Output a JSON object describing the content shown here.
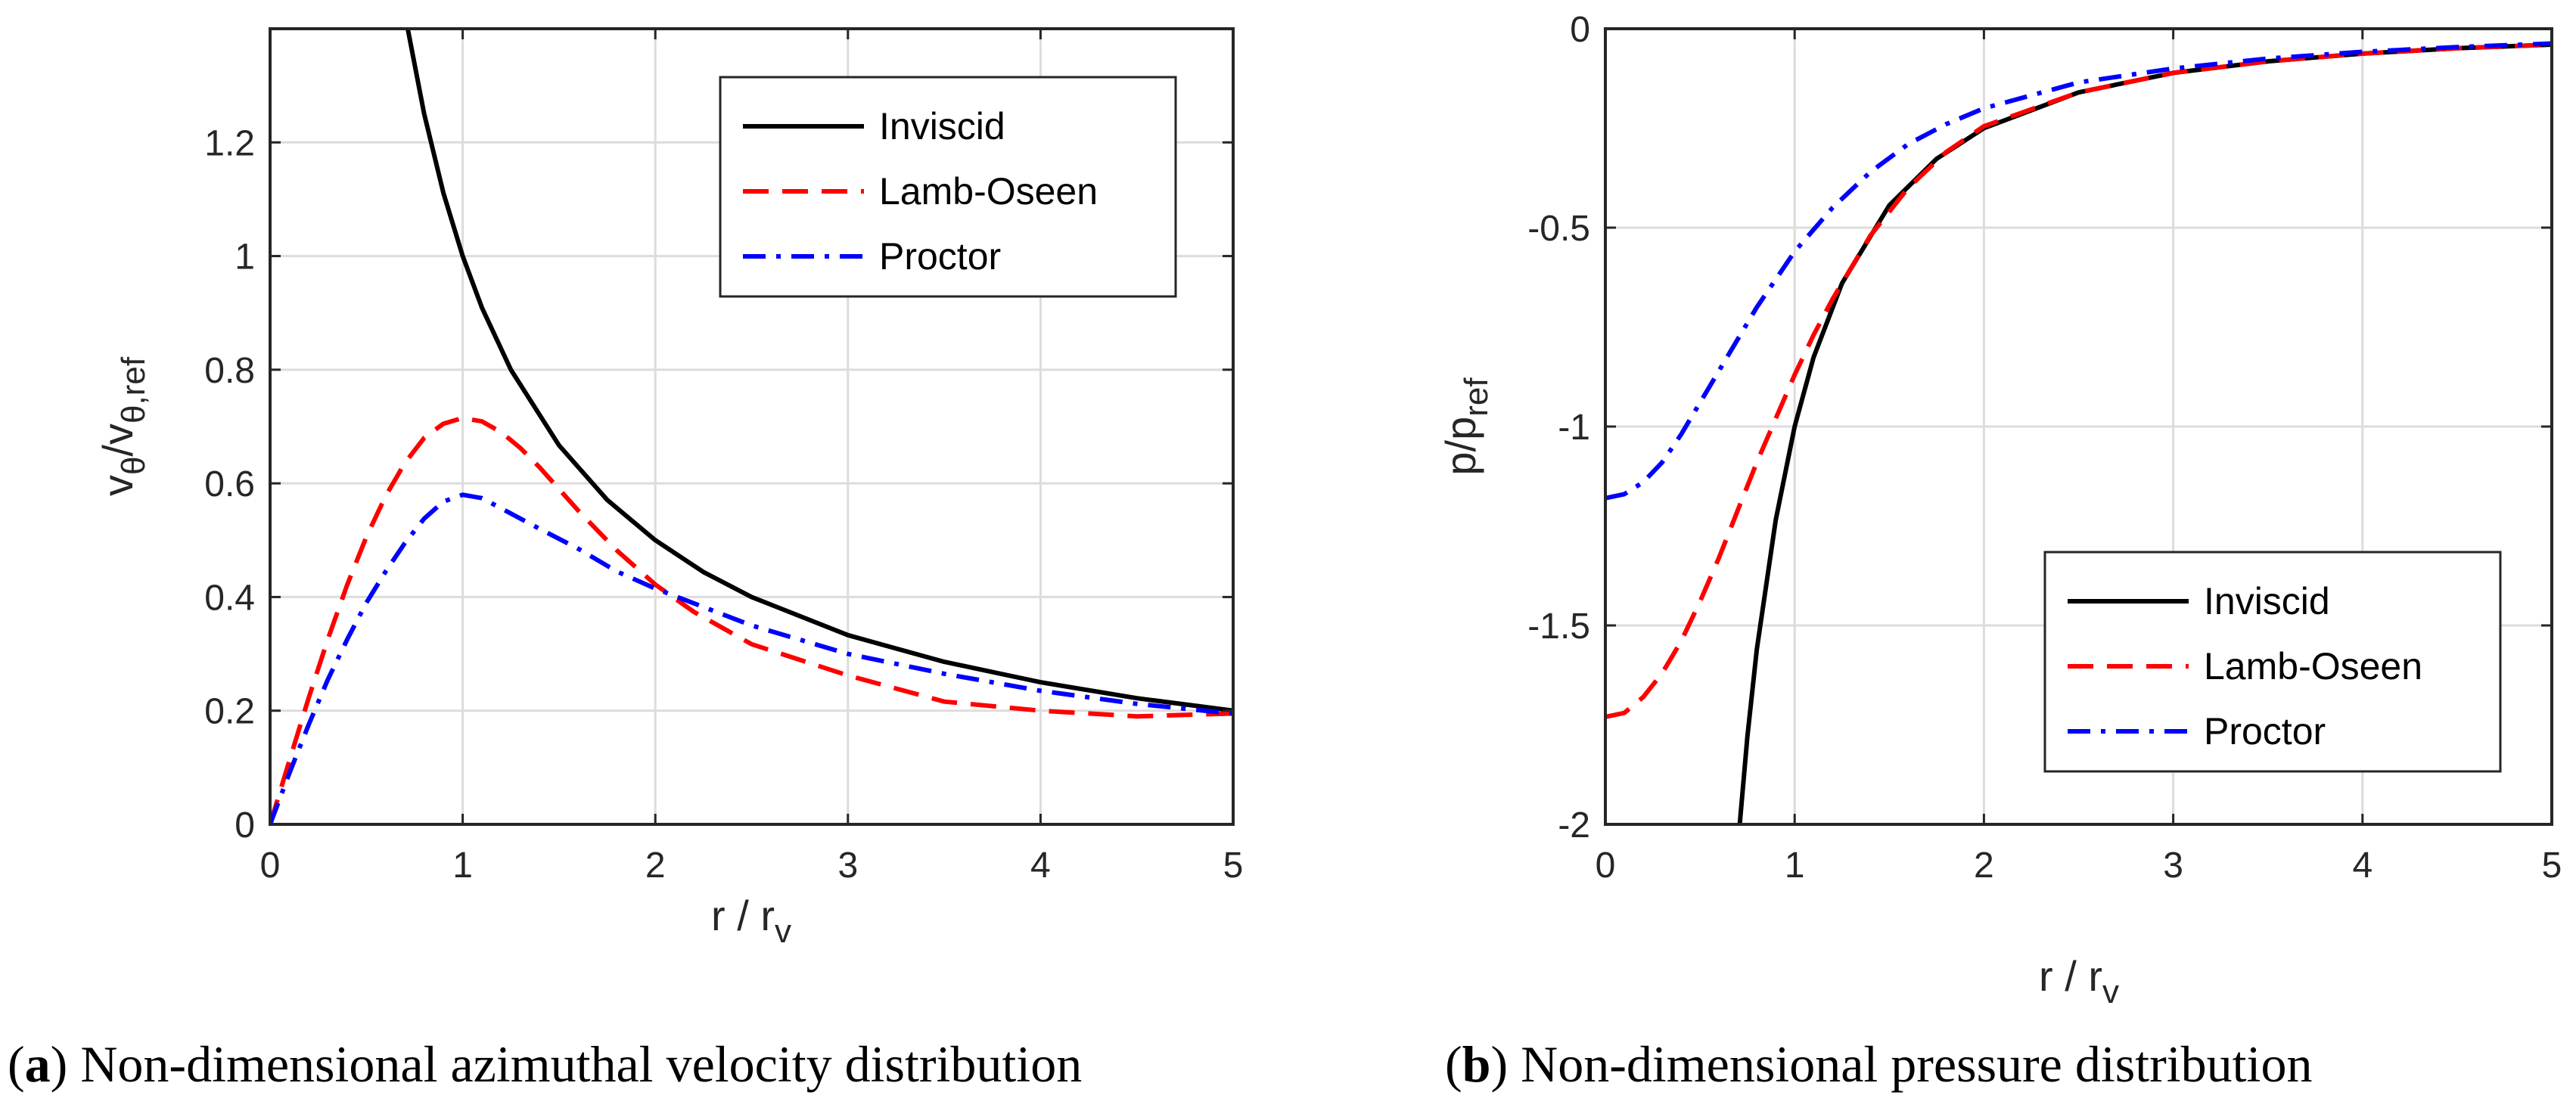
{
  "chart_data": [
    {
      "id": "a",
      "type": "line",
      "title": "",
      "xlabel": "r / r",
      "xlabel_sub": "v",
      "ylabel_parts": [
        "v",
        "θ",
        "/v",
        "θ,ref"
      ],
      "xlim": [
        0,
        5
      ],
      "ylim": [
        0,
        1.4
      ],
      "xticks": [
        0,
        1,
        2,
        3,
        4,
        5
      ],
      "yticks": [
        0,
        0.2,
        0.4,
        0.6,
        0.8,
        1,
        1.2
      ],
      "xtick_labels": [
        "0",
        "1",
        "2",
        "3",
        "4",
        "5"
      ],
      "ytick_labels": [
        "0",
        "0.2",
        "0.4",
        "0.6",
        "0.8",
        "1",
        "1.2"
      ],
      "grid": true,
      "legend_placement": "top-right",
      "caption_label": "a",
      "caption_text": "Non-dimensional azimuthal velocity distribution",
      "series": [
        {
          "name": "Inviscid",
          "color": "#000000",
          "style": "solid",
          "x": [
            0.71,
            0.8,
            0.9,
            1,
            1.1,
            1.25,
            1.5,
            1.75,
            2,
            2.25,
            2.5,
            3,
            3.5,
            4,
            4.5,
            5
          ],
          "y": [
            1.408,
            1.25,
            1.111,
            1,
            0.909,
            0.8,
            0.667,
            0.571,
            0.5,
            0.444,
            0.4,
            0.333,
            0.286,
            0.25,
            0.222,
            0.2
          ]
        },
        {
          "name": "Lamb-Oseen",
          "color": "#ff0000",
          "style": "dashed",
          "x": [
            0,
            0.1,
            0.2,
            0.3,
            0.4,
            0.5,
            0.6,
            0.7,
            0.8,
            0.9,
            1,
            1.1,
            1.2,
            1.3,
            1.4,
            1.5,
            1.6,
            1.8,
            2,
            2.2,
            2.5,
            3,
            3.5,
            4,
            4.5,
            5
          ],
          "y": [
            0,
            0.112,
            0.222,
            0.326,
            0.421,
            0.506,
            0.578,
            0.636,
            0.68,
            0.705,
            0.715,
            0.709,
            0.69,
            0.662,
            0.628,
            0.59,
            0.552,
            0.482,
            0.422,
            0.374,
            0.317,
            0.262,
            0.216,
            0.2,
            0.19,
            0.195
          ]
        },
        {
          "name": "Proctor",
          "color": "#0000ff",
          "style": "dashdot",
          "x": [
            0,
            0.1,
            0.2,
            0.3,
            0.4,
            0.5,
            0.6,
            0.7,
            0.8,
            0.9,
            1,
            1.1,
            1.2,
            1.4,
            1.6,
            1.8,
            2,
            2.5,
            3,
            3.5,
            4,
            4.5,
            5
          ],
          "y": [
            0,
            0.09,
            0.175,
            0.255,
            0.325,
            0.39,
            0.445,
            0.495,
            0.538,
            0.568,
            0.58,
            0.574,
            0.556,
            0.52,
            0.485,
            0.445,
            0.415,
            0.35,
            0.3,
            0.265,
            0.235,
            0.212,
            0.195
          ]
        }
      ]
    },
    {
      "id": "b",
      "type": "line",
      "title": "",
      "xlabel": "r / r",
      "xlabel_sub": "v",
      "ylabel_parts": [
        "p/p",
        "ref"
      ],
      "xlim": [
        0,
        5
      ],
      "ylim": [
        -2,
        0
      ],
      "xticks": [
        0,
        1,
        2,
        3,
        4,
        5
      ],
      "yticks": [
        -2,
        -1.5,
        -1,
        -0.5,
        0
      ],
      "xtick_labels": [
        "0",
        "1",
        "2",
        "3",
        "4",
        "5"
      ],
      "ytick_labels": [
        "-2",
        "-1.5",
        "-1",
        "-0.5",
        "0"
      ],
      "grid": true,
      "legend_placement": "bottom-right",
      "caption_label": "b",
      "caption_text": "Non-dimensional pressure distribution",
      "series": [
        {
          "name": "Inviscid",
          "color": "#000000",
          "style": "solid",
          "x": [
            0.71,
            0.75,
            0.8,
            0.9,
            1,
            1.1,
            1.25,
            1.5,
            1.75,
            2,
            2.5,
            3,
            3.5,
            4,
            4.5,
            5
          ],
          "y": [
            -2,
            -1.78,
            -1.56,
            -1.235,
            -1,
            -0.826,
            -0.64,
            -0.444,
            -0.327,
            -0.25,
            -0.16,
            -0.111,
            -0.082,
            -0.0625,
            -0.049,
            -0.04
          ]
        },
        {
          "name": "Lamb-Oseen",
          "color": "#ff0000",
          "style": "dashed",
          "x": [
            0,
            0.1,
            0.2,
            0.3,
            0.4,
            0.5,
            0.6,
            0.7,
            0.8,
            0.9,
            1,
            1.1,
            1.2,
            1.4,
            1.6,
            1.8,
            2,
            2.5,
            3,
            3.5,
            4,
            4.5,
            5
          ],
          "y": [
            -1.73,
            -1.72,
            -1.68,
            -1.62,
            -1.54,
            -1.44,
            -1.33,
            -1.21,
            -1.09,
            -0.98,
            -0.87,
            -0.77,
            -0.68,
            -0.52,
            -0.4,
            -0.31,
            -0.245,
            -0.16,
            -0.111,
            -0.082,
            -0.0625,
            -0.049,
            -0.04
          ]
        },
        {
          "name": "Proctor",
          "color": "#0000ff",
          "style": "dashdot",
          "x": [
            0,
            0.1,
            0.2,
            0.3,
            0.4,
            0.5,
            0.6,
            0.7,
            0.8,
            0.9,
            1,
            1.2,
            1.4,
            1.6,
            1.8,
            2,
            2.5,
            3,
            3.5,
            4,
            4.5,
            5
          ],
          "y": [
            -1.18,
            -1.17,
            -1.14,
            -1.09,
            -1.02,
            -0.94,
            -0.86,
            -0.78,
            -0.7,
            -0.63,
            -0.56,
            -0.45,
            -0.36,
            -0.29,
            -0.24,
            -0.2,
            -0.135,
            -0.1,
            -0.075,
            -0.058,
            -0.046,
            -0.037
          ]
        }
      ]
    }
  ]
}
